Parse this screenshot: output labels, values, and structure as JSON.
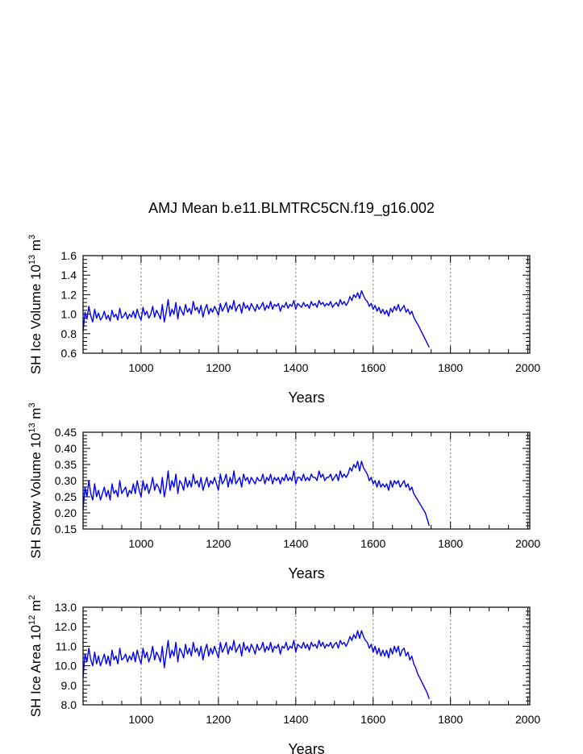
{
  "title": "AMJ Mean b.e11.BLMTRC5CN.f19_g16.002",
  "colors": {
    "series": "#0000ff",
    "axes": "#000000",
    "grid": "#8c8c8c"
  },
  "chart_data": [
    {
      "type": "line",
      "title": "AMJ Mean b.e11.BLMTRC5CN.f19_g16.002",
      "xlabel": "Years",
      "ylabel": "SH Ice Volume 10^13 m^3",
      "ylabel_parts": {
        "pre": "SH Ice Volume 10",
        "exp1": "13",
        "mid": " m",
        "exp2": "3"
      },
      "xlim": [
        850,
        2005
      ],
      "ylim": [
        0.6,
        1.6
      ],
      "xticks": [
        1000,
        1200,
        1400,
        1600,
        1800,
        2000
      ],
      "yticks": [
        0.6,
        0.8,
        1.0,
        1.2,
        1.4,
        1.6
      ],
      "ytick_labels": [
        "0.6",
        "0.8",
        "1.0",
        "1.2",
        "1.4",
        "1.6"
      ],
      "gridlines_x": [
        1000,
        1200,
        1400,
        1600,
        1800,
        2000
      ],
      "series": [
        {
          "name": "SH Ice Volume",
          "x_start": 850,
          "x_step": 5,
          "values": [
            0.82,
            1.02,
            0.95,
            1.08,
            0.98,
            0.92,
            1.05,
            0.96,
            1.01,
            0.94,
            0.97,
            1.03,
            0.95,
            0.99,
            0.93,
            1.04,
            0.97,
            1.0,
            0.94,
            1.06,
            0.96,
            0.98,
            1.02,
            0.95,
            1.0,
            0.97,
            1.03,
            0.96,
            1.05,
            0.98,
            0.94,
            1.07,
            0.99,
            1.03,
            0.96,
            1.0,
            1.08,
            0.97,
            1.04,
            1.0,
            0.95,
            1.1,
            0.92,
            1.02,
            1.15,
            0.98,
            1.05,
            1.0,
            1.12,
            0.95,
            1.08,
            1.03,
            0.99,
            1.1,
            1.02,
            1.06,
            1.0,
            1.13,
            1.04,
            1.07,
            1.01,
            1.09,
            0.97,
            1.05,
            1.1,
            1.0,
            1.06,
            1.02,
            1.08,
            1.04,
            0.99,
            1.11,
            1.03,
            1.07,
            1.12,
            1.02,
            1.09,
            1.05,
            1.14,
            1.03,
            1.08,
            1.1,
            1.01,
            1.12,
            1.06,
            1.09,
            1.04,
            1.11,
            1.07,
            1.03,
            1.1,
            1.05,
            1.08,
            1.12,
            1.04,
            1.09,
            1.06,
            1.13,
            1.05,
            1.1,
            1.08,
            1.11,
            1.03,
            1.09,
            1.07,
            1.12,
            1.06,
            1.1,
            1.08,
            1.14,
            1.05,
            1.11,
            1.09,
            1.07,
            1.12,
            1.08,
            1.1,
            1.06,
            1.13,
            1.09,
            1.11,
            1.07,
            1.14,
            1.1,
            1.12,
            1.08,
            1.11,
            1.09,
            1.13,
            1.07,
            1.1,
            1.12,
            1.08,
            1.15,
            1.1,
            1.13,
            1.09,
            1.12,
            1.18,
            1.14,
            1.2,
            1.17,
            1.22,
            1.16,
            1.24,
            1.19,
            1.15,
            1.13,
            1.08,
            1.11,
            1.05,
            1.09,
            1.03,
            1.07,
            1.01,
            1.05,
            1.0,
            1.04,
            0.98,
            1.06,
            1.02,
            1.08,
            1.04,
            1.1,
            1.03,
            1.06,
            1.09,
            1.02,
            1.05,
            1.0,
            1.03,
            0.97,
            0.93,
            0.9,
            0.86,
            0.82,
            0.78,
            0.74,
            0.7,
            0.66
          ]
        }
      ]
    },
    {
      "type": "line",
      "xlabel": "Years",
      "ylabel": "SH Snow Volume 10^13 m^3",
      "ylabel_parts": {
        "pre": "SH Snow Volume 10",
        "exp1": "13",
        "mid": " m",
        "exp2": "3"
      },
      "xlim": [
        850,
        2005
      ],
      "ylim": [
        0.15,
        0.45
      ],
      "xticks": [
        1000,
        1200,
        1400,
        1600,
        1800,
        2000
      ],
      "yticks": [
        0.15,
        0.2,
        0.25,
        0.3,
        0.35,
        0.4,
        0.45
      ],
      "ytick_labels": [
        "0.15",
        "0.20",
        "0.25",
        "0.30",
        "0.35",
        "0.40",
        "0.45"
      ],
      "gridlines_x": [
        1000,
        1200,
        1400,
        1600,
        1800,
        2000
      ],
      "series": [
        {
          "name": "SH Snow Volume",
          "x_start": 850,
          "x_step": 5,
          "values": [
            0.21,
            0.28,
            0.25,
            0.3,
            0.26,
            0.24,
            0.29,
            0.25,
            0.27,
            0.24,
            0.26,
            0.28,
            0.25,
            0.27,
            0.24,
            0.29,
            0.26,
            0.27,
            0.25,
            0.3,
            0.26,
            0.27,
            0.28,
            0.25,
            0.27,
            0.26,
            0.29,
            0.26,
            0.3,
            0.27,
            0.25,
            0.3,
            0.27,
            0.29,
            0.26,
            0.28,
            0.31,
            0.27,
            0.29,
            0.28,
            0.26,
            0.31,
            0.25,
            0.28,
            0.33,
            0.27,
            0.3,
            0.28,
            0.32,
            0.26,
            0.3,
            0.29,
            0.27,
            0.31,
            0.28,
            0.3,
            0.28,
            0.32,
            0.29,
            0.3,
            0.28,
            0.31,
            0.27,
            0.29,
            0.31,
            0.28,
            0.3,
            0.29,
            0.31,
            0.29,
            0.27,
            0.32,
            0.29,
            0.3,
            0.32,
            0.28,
            0.31,
            0.29,
            0.33,
            0.29,
            0.3,
            0.31,
            0.28,
            0.32,
            0.3,
            0.31,
            0.29,
            0.31,
            0.3,
            0.29,
            0.31,
            0.3,
            0.3,
            0.32,
            0.29,
            0.31,
            0.3,
            0.32,
            0.29,
            0.31,
            0.3,
            0.31,
            0.29,
            0.31,
            0.3,
            0.32,
            0.3,
            0.31,
            0.3,
            0.33,
            0.29,
            0.31,
            0.31,
            0.3,
            0.32,
            0.3,
            0.31,
            0.3,
            0.32,
            0.31,
            0.31,
            0.3,
            0.33,
            0.31,
            0.32,
            0.3,
            0.31,
            0.31,
            0.32,
            0.3,
            0.31,
            0.32,
            0.3,
            0.33,
            0.31,
            0.32,
            0.31,
            0.32,
            0.34,
            0.33,
            0.35,
            0.34,
            0.36,
            0.33,
            0.36,
            0.34,
            0.33,
            0.32,
            0.3,
            0.31,
            0.29,
            0.3,
            0.28,
            0.3,
            0.28,
            0.29,
            0.28,
            0.29,
            0.27,
            0.3,
            0.28,
            0.3,
            0.29,
            0.3,
            0.28,
            0.29,
            0.3,
            0.28,
            0.29,
            0.27,
            0.28,
            0.26,
            0.25,
            0.24,
            0.23,
            0.22,
            0.21,
            0.2,
            0.18,
            0.16
          ]
        }
      ]
    },
    {
      "type": "line",
      "xlabel": "Years",
      "ylabel": "SH Ice Area 10^12 m^2",
      "ylabel_parts": {
        "pre": "SH Ice Area 10",
        "exp1": "12",
        "mid": " m",
        "exp2": "2"
      },
      "xlim": [
        850,
        2005
      ],
      "ylim": [
        8.0,
        13.0
      ],
      "xticks": [
        1000,
        1200,
        1400,
        1600,
        1800,
        2000
      ],
      "yticks": [
        8.0,
        9.0,
        10.0,
        11.0,
        12.0,
        13.0
      ],
      "ytick_labels": [
        "8.0",
        "9.0",
        "10.0",
        "11.0",
        "12.0",
        "13.0"
      ],
      "gridlines_x": [
        1000,
        1200,
        1400,
        1600,
        1800,
        2000
      ],
      "series": [
        {
          "name": "SH Ice Area",
          "x_start": 850,
          "x_step": 5,
          "values": [
            9.4,
            10.6,
            10.2,
            10.9,
            10.3,
            10.0,
            10.7,
            10.1,
            10.5,
            10.0,
            10.3,
            10.6,
            10.1,
            10.5,
            10.0,
            10.8,
            10.3,
            10.5,
            10.1,
            10.9,
            10.3,
            10.4,
            10.6,
            10.2,
            10.5,
            10.3,
            10.7,
            10.2,
            10.8,
            10.4,
            10.1,
            10.9,
            10.4,
            10.7,
            10.2,
            10.5,
            11.0,
            10.3,
            10.7,
            10.5,
            10.2,
            11.0,
            9.9,
            10.6,
            11.3,
            10.4,
            10.8,
            10.5,
            11.2,
            10.2,
            10.9,
            10.7,
            10.4,
            11.1,
            10.6,
            10.9,
            10.5,
            11.2,
            10.7,
            10.9,
            10.5,
            11.0,
            10.3,
            10.8,
            11.1,
            10.5,
            10.9,
            10.6,
            11.0,
            10.7,
            10.4,
            11.2,
            10.7,
            10.9,
            11.2,
            10.6,
            11.0,
            10.8,
            11.3,
            10.7,
            10.9,
            11.1,
            10.5,
            11.2,
            10.8,
            11.0,
            10.7,
            11.1,
            10.9,
            10.6,
            11.1,
            10.8,
            10.9,
            11.2,
            10.7,
            11.0,
            10.8,
            11.2,
            10.7,
            11.0,
            10.9,
            11.1,
            10.6,
            11.0,
            10.9,
            11.2,
            10.8,
            11.0,
            10.9,
            11.3,
            10.7,
            11.1,
            11.0,
            10.9,
            11.2,
            10.9,
            11.1,
            10.8,
            11.2,
            11.0,
            11.1,
            10.9,
            11.3,
            11.0,
            11.2,
            10.9,
            11.1,
            11.0,
            11.2,
            10.9,
            11.1,
            11.2,
            10.9,
            11.3,
            11.1,
            11.2,
            11.0,
            11.2,
            11.5,
            11.3,
            11.6,
            11.4,
            11.8,
            11.4,
            11.8,
            11.5,
            11.3,
            11.2,
            10.9,
            11.1,
            10.7,
            11.0,
            10.6,
            10.9,
            10.5,
            10.8,
            10.5,
            10.8,
            10.4,
            10.9,
            10.6,
            11.0,
            10.7,
            11.0,
            10.5,
            10.8,
            10.9,
            10.5,
            10.7,
            10.3,
            10.5,
            10.1,
            9.9,
            9.6,
            9.4,
            9.2,
            9.0,
            8.8,
            8.6,
            8.3
          ]
        }
      ]
    }
  ]
}
